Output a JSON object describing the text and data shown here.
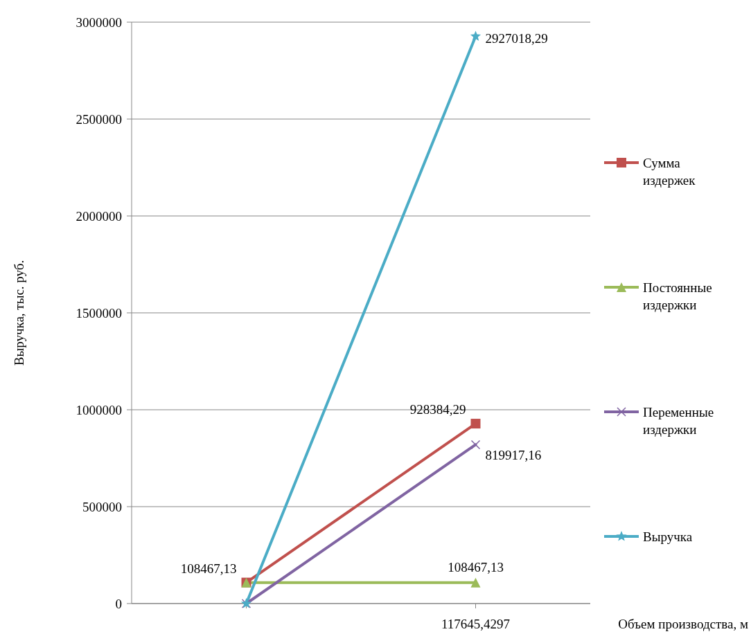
{
  "chart_data": {
    "type": "line",
    "xlabel": "Объем производства, м",
    "ylabel": "Выручка, тыс. руб.",
    "categories": [
      null,
      "117645,4297"
    ],
    "ylim": [
      0,
      3000000
    ],
    "yticks": [
      0,
      500000,
      1000000,
      1500000,
      2000000,
      2500000,
      3000000
    ],
    "grid": "y",
    "legend": "right",
    "series": [
      {
        "name": "Сумма издержек",
        "color": "#c0504d",
        "marker": "square",
        "values": [
          108467.13,
          928384.29
        ],
        "value_labels": [
          "108467,13",
          "928384,29"
        ]
      },
      {
        "name": "Постоянные издержки",
        "color": "#9bbb59",
        "marker": "triangle",
        "values": [
          108467.13,
          108467.13
        ],
        "value_labels": [
          null,
          "108467,13"
        ]
      },
      {
        "name": "Переменные издержки",
        "color": "#8064a2",
        "marker": "cross",
        "values": [
          0,
          819917.16
        ],
        "value_labels": [
          null,
          "819917,16"
        ]
      },
      {
        "name": "Выручка",
        "color": "#4bacc6",
        "marker": "star",
        "values": [
          0,
          2927018.29
        ],
        "value_labels": [
          null,
          "2927018,29"
        ]
      }
    ]
  }
}
